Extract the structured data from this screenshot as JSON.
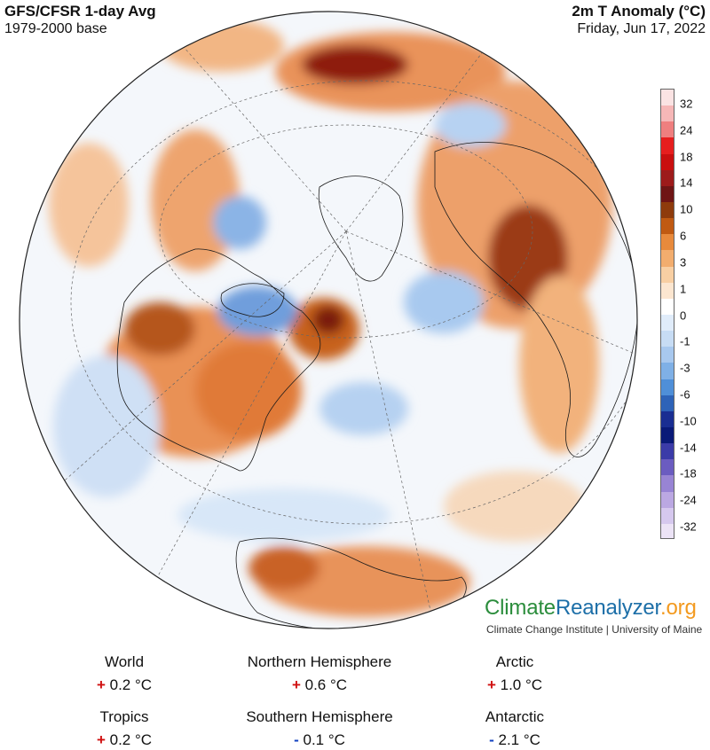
{
  "header": {
    "left_title": "GFS/CFSR 1-day Avg",
    "left_subtitle": "1979-2000 base",
    "right_title": "2m T Anomaly (°C)",
    "right_subtitle": "Friday, Jun 17, 2022"
  },
  "legend": {
    "ticks": [
      "32",
      "24",
      "18",
      "14",
      "10",
      "6",
      "3",
      "1",
      "0",
      "-1",
      "-3",
      "-6",
      "-10",
      "-14",
      "-18",
      "-24",
      "-32"
    ],
    "colors": [
      "#fbe3e3",
      "#f6b7b7",
      "#ef7f7f",
      "#e61e1e",
      "#c90f0f",
      "#9d1b1b",
      "#6f1515",
      "#8e3b0c",
      "#c05a12",
      "#e88a3c",
      "#f2ad6e",
      "#f8cfa3",
      "#fce6d0",
      "#ffffff",
      "#e0ecfa",
      "#c7dcf4",
      "#a8c8ee",
      "#7fb0e6",
      "#4f8fd8",
      "#2e63b8",
      "#1a2e92",
      "#0a1a78",
      "#3b3ba8",
      "#6b5cc0",
      "#9884d4",
      "#bba8e2",
      "#d6c8ee",
      "#ece3f6"
    ]
  },
  "brand": {
    "logo_part1": "Climate",
    "logo_part2": "Reanalyzer",
    "logo_part3": ".org",
    "tagline": "Climate Change Institute | University of Maine"
  },
  "stats": [
    {
      "label": "World",
      "sign": "+",
      "value": "0.2 °C"
    },
    {
      "label": "Northern Hemisphere",
      "sign": "+",
      "value": "0.6 °C"
    },
    {
      "label": "Arctic",
      "sign": "+",
      "value": "1.0 °C"
    },
    {
      "label": "Tropics",
      "sign": "+",
      "value": "0.2 °C"
    },
    {
      "label": "Southern Hemisphere",
      "sign": "-",
      "value": "0.1 °C"
    },
    {
      "label": "Antarctic",
      "sign": "-",
      "value": "2.1 °C"
    }
  ]
}
